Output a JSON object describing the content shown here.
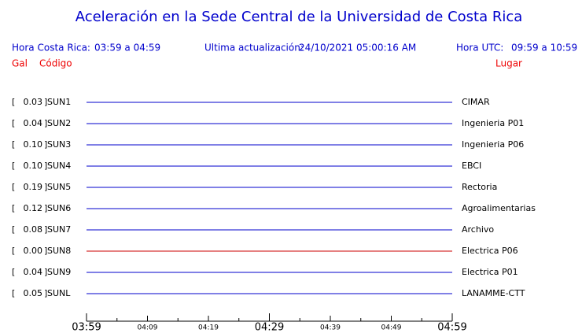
{
  "header": {
    "title": "Aceleración en la Sede Central de la Universidad de Costa Rica",
    "local_label": "Hora Costa Rica:",
    "local_range": "03:59 a 04:59",
    "update_label": "Ultima actualización:",
    "update_value": "24/10/2021 05:00:16 AM",
    "utc_label": "Hora UTC:",
    "utc_range": "09:59 a 10:59",
    "gal_heading": "Gal",
    "code_heading": "Código",
    "place_heading": "Lugar"
  },
  "stations": [
    {
      "gal": "0.03",
      "code": "SUN1",
      "place": "CIMAR",
      "color": "#0000cc"
    },
    {
      "gal": "0.04",
      "code": "SUN2",
      "place": "Ingenieria P01",
      "color": "#0000cc"
    },
    {
      "gal": "0.10",
      "code": "SUN3",
      "place": "Ingenieria P06",
      "color": "#0000cc"
    },
    {
      "gal": "0.10",
      "code": "SUN4",
      "place": "EBCI",
      "color": "#0000cc"
    },
    {
      "gal": "0.19",
      "code": "SUN5",
      "place": "Rectoria",
      "color": "#0000cc"
    },
    {
      "gal": "0.12",
      "code": "SUN6",
      "place": "Agroalimentarias",
      "color": "#0000cc"
    },
    {
      "gal": "0.08",
      "code": "SUN7",
      "place": "Archivo",
      "color": "#0000cc"
    },
    {
      "gal": "0.00",
      "code": "SUN8",
      "place": "Electrica P06",
      "color": "#cc0000"
    },
    {
      "gal": "0.04",
      "code": "SUN9",
      "place": "Electrica P01",
      "color": "#0000cc"
    },
    {
      "gal": "0.05",
      "code": "SUNL",
      "place": "LANAMME-CTT",
      "color": "#0000cc"
    }
  ],
  "time_axis": [
    {
      "label": "03:59",
      "major": true
    },
    {
      "label": "04:09",
      "major": false
    },
    {
      "label": "04:19",
      "major": false
    },
    {
      "label": "04:29",
      "major": true
    },
    {
      "label": "04:39",
      "major": false
    },
    {
      "label": "04:49",
      "major": false
    },
    {
      "label": "04:59",
      "major": true
    }
  ]
}
